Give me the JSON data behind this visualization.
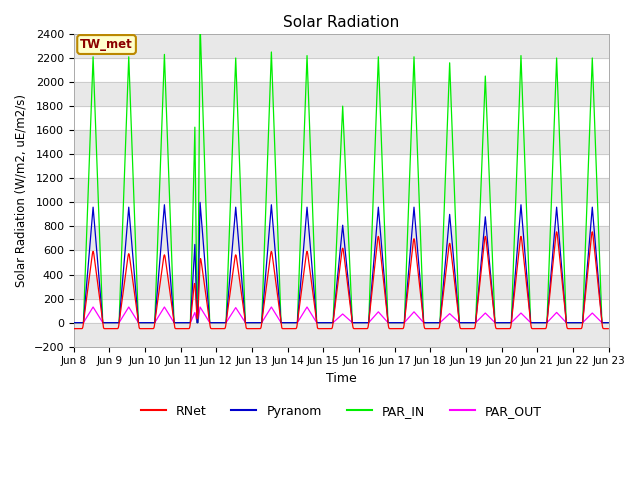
{
  "title": "Solar Radiation",
  "ylabel": "Solar Radiation (W/m2, uE/m2/s)",
  "xlabel": "Time",
  "ylim": [
    -200,
    2400
  ],
  "yticks": [
    -200,
    0,
    200,
    400,
    600,
    800,
    1000,
    1200,
    1400,
    1600,
    1800,
    2000,
    2200,
    2400
  ],
  "xtick_labels": [
    "Jun 8",
    "Jun 9",
    "Jun 10",
    "Jun 11",
    "Jun 12",
    "Jun 13",
    "Jun 14",
    "Jun 15",
    "Jun 16",
    "Jun 17",
    "Jun 18",
    "Jun 19",
    "Jun 20",
    "Jun 21",
    "Jun 22",
    "Jun 23"
  ],
  "station_label": "TW_met",
  "legend_labels": [
    "RNet",
    "Pyranom",
    "PAR_IN",
    "PAR_OUT"
  ],
  "line_colors": {
    "RNet": "#ff0000",
    "Pyranom": "#0000cd",
    "PAR_IN": "#00ee00",
    "PAR_OUT": "#ff00ff"
  },
  "background_color": "#ffffff",
  "plot_bg_color": "#ffffff",
  "grid_color": "#cccccc",
  "n_days": 15,
  "dt_hours": 0.25,
  "night_rnet": -50,
  "par_in_peaks": [
    2210,
    2210,
    2230,
    2500,
    2200,
    2250,
    2220,
    2000,
    2210,
    2210,
    2160,
    2050,
    2220,
    2200,
    2200
  ],
  "pyranom_peaks": [
    960,
    960,
    980,
    1000,
    960,
    980,
    960,
    900,
    960,
    960,
    900,
    880,
    980,
    960,
    960
  ],
  "rnet_peaks": [
    620,
    600,
    590,
    580,
    590,
    620,
    620,
    720,
    750,
    730,
    690,
    750,
    750,
    790,
    790
  ],
  "par_out_peaks": [
    130,
    130,
    130,
    130,
    125,
    130,
    130,
    80,
    90,
    90,
    75,
    80,
    80,
    85,
    80
  ],
  "cloudy_day": 3,
  "partly_cloudy_day": 7,
  "partly_cloudy_day2": 10
}
